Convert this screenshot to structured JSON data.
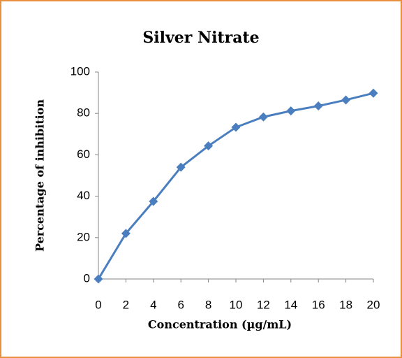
{
  "chart_data": {
    "type": "line",
    "title": "Silver Nitrate",
    "x_label": "Concentration  (µg/mL)",
    "y_label": "Percentage of inhibition",
    "x": [
      0,
      2,
      4,
      6,
      8,
      10,
      12,
      14,
      16,
      18,
      20
    ],
    "values": [
      0,
      22,
      37.5,
      54,
      64.3,
      73.3,
      78.3,
      81.2,
      83.6,
      86.5,
      89.8
    ],
    "color": "#4a7ebf",
    "xlim": [
      0,
      20
    ],
    "xticks": [
      0,
      2,
      4,
      6,
      8,
      10,
      12,
      14,
      16,
      18,
      20
    ],
    "ylim": [
      0,
      100
    ],
    "yticks": [
      0,
      20,
      40,
      60,
      80,
      100
    ],
    "grid": false,
    "markers": "diamond"
  }
}
